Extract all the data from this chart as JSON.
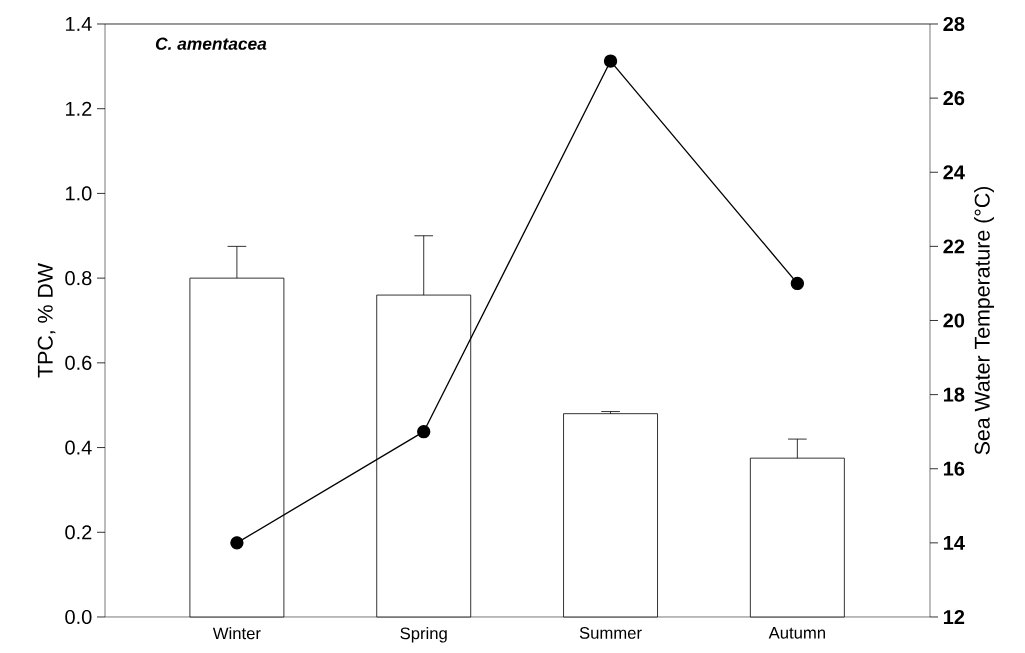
{
  "chart_data": {
    "type": "bar",
    "categories": [
      "Winter",
      "Spring",
      "Summer",
      "Autumn"
    ],
    "ylabel": "TPC, % DW",
    "y2label": "Sea Water Temperature (°C)",
    "ylim": [
      0,
      1.4
    ],
    "yticks": [
      {
        "value": 0,
        "label": "0.0"
      },
      {
        "value": 0.2,
        "label": "0.2"
      },
      {
        "value": 0.4,
        "label": "0.4"
      },
      {
        "value": 0.6,
        "label": "0.6"
      },
      {
        "value": 0.8,
        "label": "0.8"
      },
      {
        "value": 1.0,
        "label": "1.0"
      },
      {
        "value": 1.2,
        "label": "1.2"
      },
      {
        "value": 1.4,
        "label": "1.4"
      }
    ],
    "y2lim": [
      12,
      28
    ],
    "y2ticks": [
      12,
      14,
      16,
      18,
      20,
      22,
      24,
      26,
      28
    ],
    "annotations": [
      "C. amentacea"
    ],
    "marker": "circle",
    "series": [
      {
        "color": "#ffffff",
        "values": [
          0.8,
          0.76,
          0.48,
          0.375
        ],
        "errors": [
          0.075,
          0.14,
          0.005,
          0.045
        ]
      },
      {
        "type": "line",
        "axis": "y2",
        "color": "#000000",
        "values": [
          14,
          17,
          27,
          21
        ]
      }
    ]
  }
}
